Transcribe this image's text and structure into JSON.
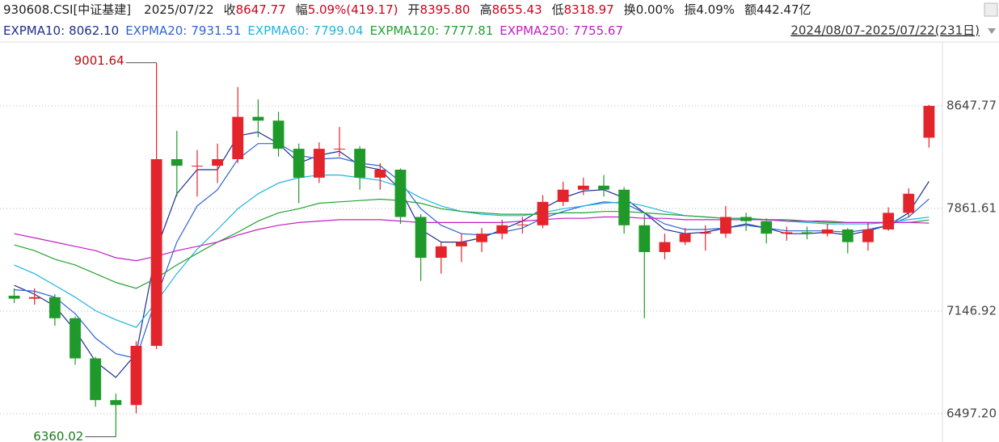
{
  "header": {
    "symbol": "930608.CSI[中证基建]",
    "date": "2025/07/22",
    "quote": [
      {
        "label": "收",
        "value": "8647.77",
        "color": "#d0021b"
      },
      {
        "label": "幅",
        "value": "5.09%(419.17)",
        "color": "#d0021b"
      },
      {
        "label": "开",
        "value": "8395.80",
        "color": "#d0021b"
      },
      {
        "label": "高",
        "value": "8655.43",
        "color": "#d0021b"
      },
      {
        "label": "低",
        "value": "8318.97",
        "color": "#d0021b"
      },
      {
        "label": "换",
        "value": "0.00%",
        "color": "#222222"
      },
      {
        "label": "振",
        "value": "4.09%",
        "color": "#222222"
      },
      {
        "label": "额",
        "value": "442.47亿",
        "color": "#222222"
      }
    ],
    "range": "2024/08/07-2025/07/22(231日)"
  },
  "chart_data": {
    "type": "candlestick",
    "log": true,
    "grid": true,
    "up_color": "#e3242b",
    "down_color": "#1f9a2a",
    "ylim": [
      6329,
      9176
    ],
    "yticks": [
      8647.77,
      7861.61,
      7146.92,
      {
        "value": 6497.2,
        "label": "6497.20"
      }
    ],
    "annotations": [
      9001.64,
      6360.02
    ],
    "ohlc": [
      [
        7250,
        7300,
        7200,
        7230
      ],
      [
        7230,
        7300,
        7190,
        7240
      ],
      [
        7240,
        7260,
        7050,
        7100
      ],
      [
        7100,
        7110,
        6800,
        6840
      ],
      [
        6840,
        6850,
        6540,
        6580
      ],
      [
        6580,
        6620,
        6360.02,
        6550
      ],
      [
        6550,
        6950,
        6500,
        6920
      ],
      [
        6920,
        9001.64,
        6900,
        8230
      ],
      [
        8230,
        8450,
        7950,
        8180
      ],
      [
        8180,
        8300,
        7950,
        8180
      ],
      [
        8180,
        8350,
        8050,
        8230
      ],
      [
        8230,
        8800,
        8200,
        8560
      ],
      [
        8560,
        8700,
        8400,
        8530
      ],
      [
        8530,
        8600,
        8250,
        8310
      ],
      [
        8310,
        8350,
        7900,
        8090
      ],
      [
        8090,
        8360,
        8050,
        8310
      ],
      [
        8310,
        8480,
        8250,
        8310
      ],
      [
        8310,
        8330,
        8000,
        8090
      ],
      [
        8090,
        8200,
        8000,
        8150
      ],
      [
        8150,
        8160,
        7750,
        7800
      ],
      [
        7800,
        7820,
        7350,
        7510
      ],
      [
        7510,
        7620,
        7400,
        7590
      ],
      [
        7590,
        7680,
        7480,
        7620
      ],
      [
        7620,
        7720,
        7550,
        7680
      ],
      [
        7680,
        7780,
        7640,
        7740
      ],
      [
        7740,
        7800,
        7680,
        7745
      ],
      [
        7740,
        7960,
        7720,
        7910
      ],
      [
        7910,
        8060,
        7880,
        8000
      ],
      [
        8000,
        8090,
        7960,
        8030
      ],
      [
        8030,
        8110,
        7950,
        8000
      ],
      [
        8000,
        8020,
        7680,
        7740
      ],
      [
        7740,
        7820,
        7100,
        7550
      ],
      [
        7550,
        7680,
        7500,
        7620
      ],
      [
        7620,
        7720,
        7600,
        7680
      ],
      [
        7680,
        7740,
        7560,
        7690
      ],
      [
        7680,
        7880,
        7650,
        7800
      ],
      [
        7800,
        7830,
        7700,
        7770
      ],
      [
        7770,
        7790,
        7610,
        7680
      ],
      [
        7680,
        7730,
        7630,
        7690
      ],
      [
        7690,
        7730,
        7640,
        7680
      ],
      [
        7680,
        7750,
        7660,
        7710
      ],
      [
        7710,
        7720,
        7540,
        7620
      ],
      [
        7620,
        7760,
        7560,
        7710
      ],
      [
        7710,
        7870,
        7700,
        7830
      ],
      [
        7830,
        8010,
        7800,
        7970
      ],
      [
        8395.8,
        8655.43,
        8318.97,
        8647.77
      ]
    ],
    "series": [
      {
        "name": "EXPMA10:",
        "last_label": "8062.10",
        "color": "#1d2f8f",
        "values": [
          7320,
          7260,
          7180,
          7020,
          6820,
          6720,
          6870,
          7570,
          7970,
          8150,
          8150,
          8410,
          8440,
          8350,
          8200,
          8260,
          8290,
          8180,
          8150,
          8000,
          7710,
          7620,
          7620,
          7650,
          7710,
          7770,
          7860,
          7940,
          7990,
          8000,
          7940,
          7830,
          7710,
          7680,
          7690,
          7720,
          7750,
          7720,
          7680,
          7680,
          7690,
          7670,
          7700,
          7740,
          7830,
          8062.1
        ]
      },
      {
        "name": "EXPMA20:",
        "last_label": "7931.51",
        "color": "#2f64d6",
        "values": [
          7290,
          7280,
          7240,
          7130,
          6970,
          6870,
          6840,
          7240,
          7620,
          7880,
          8000,
          8230,
          8350,
          8350,
          8260,
          8230,
          8240,
          8200,
          8180,
          8060,
          7860,
          7740,
          7680,
          7670,
          7690,
          7720,
          7790,
          7840,
          7880,
          7910,
          7900,
          7830,
          7750,
          7710,
          7710,
          7720,
          7740,
          7720,
          7700,
          7700,
          7700,
          7690,
          7710,
          7740,
          7800,
          7931.51
        ]
      },
      {
        "name": "EXPMA60:",
        "last_label": "7799.04",
        "color": "#23b3e0",
        "values": [
          7460,
          7400,
          7320,
          7240,
          7150,
          7090,
          7040,
          7210,
          7400,
          7570,
          7710,
          7860,
          7970,
          8050,
          8090,
          8110,
          8110,
          8090,
          8070,
          8020,
          7940,
          7880,
          7840,
          7820,
          7810,
          7810,
          7830,
          7860,
          7880,
          7900,
          7910,
          7880,
          7840,
          7810,
          7800,
          7790,
          7790,
          7780,
          7770,
          7760,
          7750,
          7750,
          7750,
          7760,
          7780,
          7799.04
        ]
      },
      {
        "name": "EXPMA120:",
        "last_label": "7777.81",
        "color": "#22a332",
        "values": [
          7600,
          7560,
          7500,
          7460,
          7400,
          7340,
          7300,
          7370,
          7460,
          7540,
          7620,
          7690,
          7770,
          7830,
          7860,
          7900,
          7910,
          7920,
          7930,
          7920,
          7900,
          7860,
          7840,
          7830,
          7820,
          7820,
          7820,
          7830,
          7830,
          7840,
          7840,
          7830,
          7820,
          7810,
          7800,
          7790,
          7790,
          7780,
          7780,
          7770,
          7760,
          7760,
          7760,
          7760,
          7760,
          7777.81
        ]
      },
      {
        "name": "EXPMA250:",
        "last_label": "7755.67",
        "color": "#c21fc4",
        "values": [
          7680,
          7650,
          7620,
          7590,
          7560,
          7510,
          7490,
          7520,
          7560,
          7590,
          7620,
          7670,
          7710,
          7740,
          7760,
          7770,
          7780,
          7780,
          7780,
          7770,
          7760,
          7760,
          7760,
          7760,
          7760,
          7770,
          7780,
          7790,
          7790,
          7800,
          7800,
          7790,
          7790,
          7780,
          7780,
          7780,
          7780,
          7780,
          7770,
          7770,
          7770,
          7760,
          7760,
          7760,
          7760,
          7755.67
        ]
      }
    ]
  }
}
